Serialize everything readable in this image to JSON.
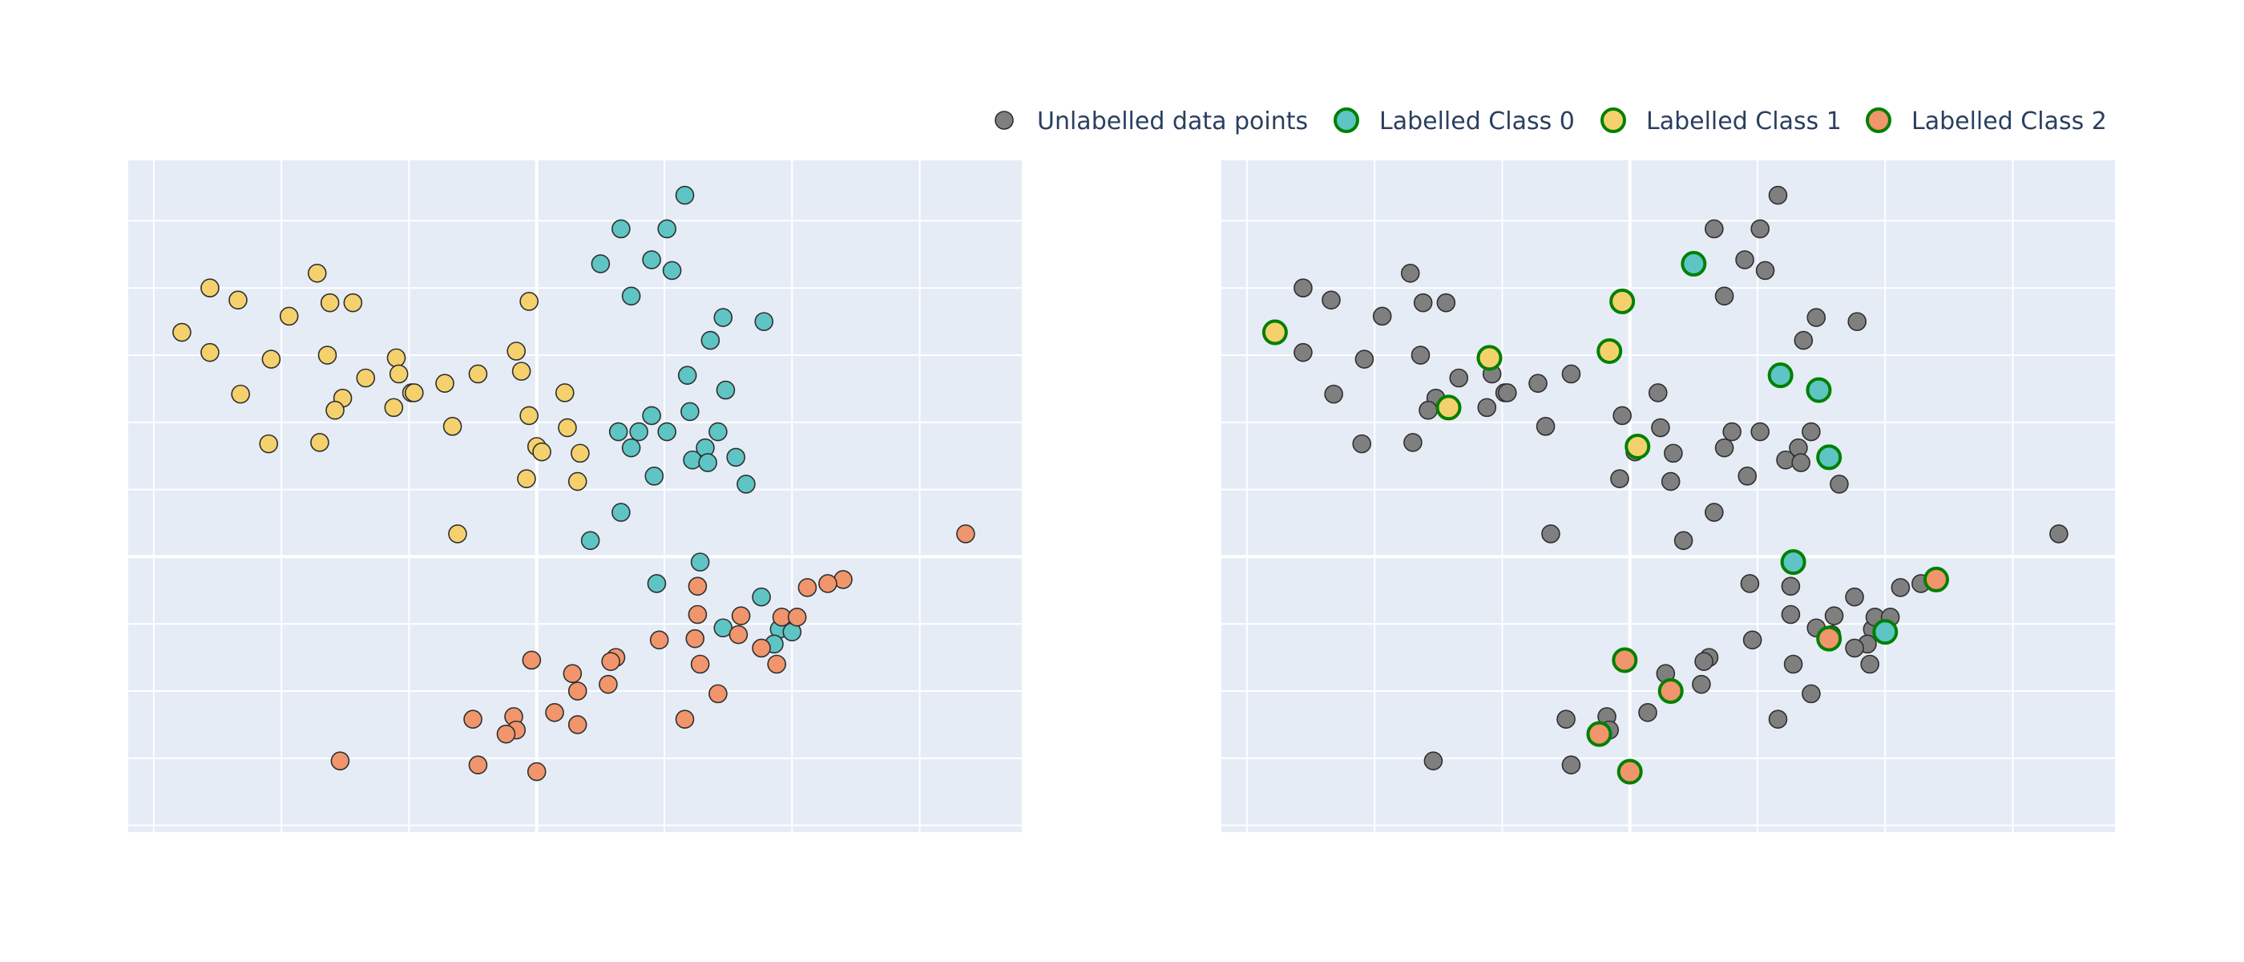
{
  "legend": {
    "items": [
      {
        "label": "Unlabelled data points",
        "fill": "#7f7f7f",
        "stroke": "#2f2f2f"
      },
      {
        "label": "Labelled Class 0",
        "fill": "#5ec4c4",
        "stroke": "#008000"
      },
      {
        "label": "Labelled Class 1",
        "fill": "#f5d16e",
        "stroke": "#008000"
      },
      {
        "label": "Labelled Class 2",
        "fill": "#f0956c",
        "stroke": "#008000"
      }
    ]
  },
  "colors": {
    "plot_bg": "#e5ecf6",
    "grid": "#ffffff",
    "class_0": "#5ec4c4",
    "class_1": "#f5d16e",
    "class_2": "#f0956c",
    "unlabelled": "#7f7f7f",
    "labelled_outline": "#008000"
  },
  "chart_data": [
    {
      "type": "scatter",
      "title": "",
      "xlabel": "",
      "ylabel": "",
      "xlim": [
        -1.6,
        1.9
      ],
      "ylim": [
        -2.3,
        2.7
      ],
      "grid": true,
      "series": [
        {
          "name": "Labelled Class 0",
          "color": "#5ec4c4",
          "points": [
            [
              0.58,
              2.44
            ],
            [
              0.33,
              2.19
            ],
            [
              0.51,
              2.19
            ],
            [
              0.25,
              1.93
            ],
            [
              0.45,
              1.96
            ],
            [
              0.53,
              1.88
            ],
            [
              0.37,
              1.69
            ],
            [
              0.73,
              1.53
            ],
            [
              0.68,
              1.36
            ],
            [
              0.89,
              1.5
            ],
            [
              0.59,
              1.1
            ],
            [
              0.74,
              0.99
            ],
            [
              0.45,
              0.8
            ],
            [
              0.6,
              0.83
            ],
            [
              0.32,
              0.68
            ],
            [
              0.4,
              0.68
            ],
            [
              0.51,
              0.68
            ],
            [
              0.71,
              0.68
            ],
            [
              0.37,
              0.56
            ],
            [
              0.66,
              0.56
            ],
            [
              0.61,
              0.47
            ],
            [
              0.67,
              0.45
            ],
            [
              0.78,
              0.49
            ],
            [
              0.46,
              0.35
            ],
            [
              0.82,
              0.29
            ],
            [
              0.33,
              0.08
            ],
            [
              0.21,
              -0.13
            ],
            [
              0.64,
              -0.29
            ],
            [
              0.47,
              -0.45
            ],
            [
              0.88,
              -0.55
            ],
            [
              0.73,
              -0.78
            ],
            [
              0.95,
              -0.79
            ],
            [
              1.0,
              -0.81
            ],
            [
              0.93,
              -0.9
            ]
          ]
        },
        {
          "name": "Labelled Class 1",
          "color": "#f5d16e",
          "points": [
            [
              -0.86,
              1.86
            ],
            [
              -1.28,
              1.75
            ],
            [
              -1.17,
              1.66
            ],
            [
              -0.81,
              1.64
            ],
            [
              -0.72,
              1.64
            ],
            [
              -0.97,
              1.54
            ],
            [
              -0.03,
              1.65
            ],
            [
              -1.39,
              1.42
            ],
            [
              -1.28,
              1.27
            ],
            [
              -0.82,
              1.25
            ],
            [
              -1.04,
              1.22
            ],
            [
              -0.55,
              1.23
            ],
            [
              -0.08,
              1.28
            ],
            [
              -0.54,
              1.11
            ],
            [
              -0.67,
              1.08
            ],
            [
              -0.36,
              1.04
            ],
            [
              -0.49,
              0.97
            ],
            [
              -1.16,
              0.96
            ],
            [
              -0.48,
              0.97
            ],
            [
              -0.76,
              0.93
            ],
            [
              -0.23,
              1.11
            ],
            [
              -0.06,
              1.13
            ],
            [
              0.11,
              0.97
            ],
            [
              -0.79,
              0.84
            ],
            [
              -0.03,
              0.8
            ],
            [
              -0.33,
              0.72
            ],
            [
              -0.56,
              0.86
            ],
            [
              0.12,
              0.71
            ],
            [
              -1.05,
              0.59
            ],
            [
              -0.85,
              0.6
            ],
            [
              0.0,
              0.57
            ],
            [
              0.02,
              0.53
            ],
            [
              0.17,
              0.52
            ],
            [
              -0.04,
              0.33
            ],
            [
              0.16,
              0.31
            ],
            [
              -0.31,
              -0.08
            ]
          ]
        },
        {
          "name": "Labelled Class 2",
          "color": "#f0956c",
          "points": [
            [
              1.68,
              -0.08
            ],
            [
              1.2,
              -0.42
            ],
            [
              1.14,
              -0.45
            ],
            [
              1.06,
              -0.48
            ],
            [
              0.63,
              -0.47
            ],
            [
              0.63,
              -0.68
            ],
            [
              0.8,
              -0.69
            ],
            [
              0.96,
              -0.7
            ],
            [
              1.02,
              -0.7
            ],
            [
              0.79,
              -0.83
            ],
            [
              0.62,
              -0.86
            ],
            [
              0.48,
              -0.87
            ],
            [
              0.88,
              -0.93
            ],
            [
              0.31,
              -1.0
            ],
            [
              0.29,
              -1.03
            ],
            [
              0.64,
              -1.05
            ],
            [
              0.94,
              -1.05
            ],
            [
              -0.02,
              -1.02
            ],
            [
              0.14,
              -1.12
            ],
            [
              0.28,
              -1.2
            ],
            [
              0.16,
              -1.25
            ],
            [
              0.71,
              -1.27
            ],
            [
              -0.25,
              -1.46
            ],
            [
              -0.09,
              -1.44
            ],
            [
              -0.08,
              -1.54
            ],
            [
              -0.12,
              -1.57
            ],
            [
              0.07,
              -1.41
            ],
            [
              0.16,
              -1.5
            ],
            [
              0.58,
              -1.46
            ],
            [
              -0.77,
              -1.77
            ],
            [
              -0.23,
              -1.8
            ],
            [
              0.0,
              -1.85
            ]
          ]
        }
      ]
    },
    {
      "type": "scatter",
      "title": "",
      "xlabel": "",
      "ylabel": "",
      "xlim": [
        -1.6,
        1.9
      ],
      "ylim": [
        -2.3,
        2.7
      ],
      "grid": true,
      "series": [
        {
          "name": "Unlabelled data points",
          "color": "#7f7f7f",
          "points": [
            [
              0.58,
              2.44
            ],
            [
              0.33,
              2.19
            ],
            [
              0.51,
              2.19
            ],
            [
              0.45,
              1.96
            ],
            [
              0.37,
              1.69
            ],
            [
              0.53,
              1.88
            ],
            [
              0.73,
              1.53
            ],
            [
              0.68,
              1.36
            ],
            [
              0.89,
              1.5
            ],
            [
              0.74,
              0.99
            ],
            [
              0.4,
              0.68
            ],
            [
              0.51,
              0.68
            ],
            [
              0.71,
              0.68
            ],
            [
              0.37,
              0.56
            ],
            [
              0.66,
              0.56
            ],
            [
              0.61,
              0.47
            ],
            [
              0.67,
              0.45
            ],
            [
              0.46,
              0.35
            ],
            [
              0.82,
              0.29
            ],
            [
              0.33,
              0.08
            ],
            [
              0.21,
              -0.13
            ],
            [
              0.47,
              -0.45
            ],
            [
              0.88,
              -0.55
            ],
            [
              0.73,
              -0.78
            ],
            [
              0.95,
              -0.79
            ],
            [
              0.93,
              -0.9
            ],
            [
              -0.86,
              1.86
            ],
            [
              -1.28,
              1.75
            ],
            [
              -1.17,
              1.66
            ],
            [
              -0.81,
              1.64
            ],
            [
              -0.72,
              1.64
            ],
            [
              -0.97,
              1.54
            ],
            [
              -1.28,
              1.27
            ],
            [
              -0.82,
              1.25
            ],
            [
              -1.04,
              1.22
            ],
            [
              -0.54,
              1.11
            ],
            [
              -0.67,
              1.08
            ],
            [
              -0.36,
              1.04
            ],
            [
              -0.49,
              0.97
            ],
            [
              -1.16,
              0.96
            ],
            [
              -0.48,
              0.97
            ],
            [
              -0.76,
              0.93
            ],
            [
              -0.23,
              1.11
            ],
            [
              0.11,
              0.97
            ],
            [
              -0.79,
              0.84
            ],
            [
              -0.03,
              0.8
            ],
            [
              -0.33,
              0.72
            ],
            [
              -0.56,
              0.86
            ],
            [
              0.12,
              0.71
            ],
            [
              -1.05,
              0.59
            ],
            [
              -0.85,
              0.6
            ],
            [
              0.02,
              0.53
            ],
            [
              0.17,
              0.52
            ],
            [
              -0.04,
              0.33
            ],
            [
              0.16,
              0.31
            ],
            [
              -0.31,
              -0.08
            ],
            [
              1.2,
              -0.42
            ],
            [
              1.14,
              -0.45
            ],
            [
              1.06,
              -0.48
            ],
            [
              0.63,
              -0.47
            ],
            [
              0.63,
              -0.68
            ],
            [
              0.8,
              -0.69
            ],
            [
              0.96,
              -0.7
            ],
            [
              1.02,
              -0.7
            ],
            [
              0.79,
              -0.83
            ],
            [
              0.48,
              -0.87
            ],
            [
              0.88,
              -0.93
            ],
            [
              0.31,
              -1.0
            ],
            [
              0.29,
              -1.03
            ],
            [
              0.64,
              -1.05
            ],
            [
              0.94,
              -1.05
            ],
            [
              0.14,
              -1.12
            ],
            [
              0.28,
              -1.2
            ],
            [
              0.16,
              -1.25
            ],
            [
              0.71,
              -1.27
            ],
            [
              -0.25,
              -1.46
            ],
            [
              -0.09,
              -1.44
            ],
            [
              -0.08,
              -1.54
            ],
            [
              0.07,
              -1.41
            ],
            [
              0.58,
              -1.46
            ],
            [
              -0.77,
              -1.77
            ],
            [
              -0.23,
              -1.8
            ],
            [
              1.68,
              -0.08
            ]
          ]
        },
        {
          "name": "Labelled Class 0",
          "color": "#5ec4c4",
          "points": [
            [
              0.25,
              1.93
            ],
            [
              0.59,
              1.1
            ],
            [
              0.74,
              0.99
            ],
            [
              0.78,
              0.49
            ],
            [
              0.64,
              -0.29
            ],
            [
              1.0,
              -0.81
            ]
          ]
        },
        {
          "name": "Labelled Class 1",
          "color": "#f5d16e",
          "points": [
            [
              -0.03,
              1.65
            ],
            [
              -1.39,
              1.42
            ],
            [
              -0.55,
              1.23
            ],
            [
              -0.08,
              1.28
            ],
            [
              -0.71,
              0.86
            ],
            [
              0.03,
              0.57
            ]
          ]
        },
        {
          "name": "Labelled Class 2",
          "color": "#f0956c",
          "points": [
            [
              1.2,
              -0.42
            ],
            [
              0.78,
              -0.86
            ],
            [
              -0.02,
              -1.02
            ],
            [
              0.16,
              -1.25
            ],
            [
              -0.12,
              -1.57
            ],
            [
              0.0,
              -1.85
            ]
          ]
        }
      ]
    }
  ]
}
